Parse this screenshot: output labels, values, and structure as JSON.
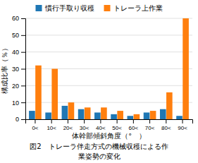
{
  "chart_data": {
    "type": "bar",
    "categories": [
      "0<",
      "10<",
      "20<",
      "30<",
      "40<",
      "50<",
      "60<",
      "70<",
      "80<",
      "90<"
    ],
    "series": [
      {
        "name": "慣行手取り収穫",
        "values": [
          5,
          4,
          8,
          6,
          4,
          3,
          2,
          4,
          6,
          2
        ]
      },
      {
        "name": "トレーラ上作業",
        "values": [
          32,
          30,
          10,
          7,
          7,
          5,
          3,
          5,
          16,
          60
        ]
      }
    ],
    "xlabel": "体幹部傾斜角度（°　）",
    "ylabel": "構成比率（％）",
    "title": "図2　トレーラ伴走方式の機械収穫による作",
    "subtitle": "業姿勢の変化",
    "ylim": [
      0,
      60
    ],
    "yticks": [
      0,
      10,
      20,
      30,
      40,
      50,
      60
    ],
    "grid": true,
    "legend": "top"
  }
}
